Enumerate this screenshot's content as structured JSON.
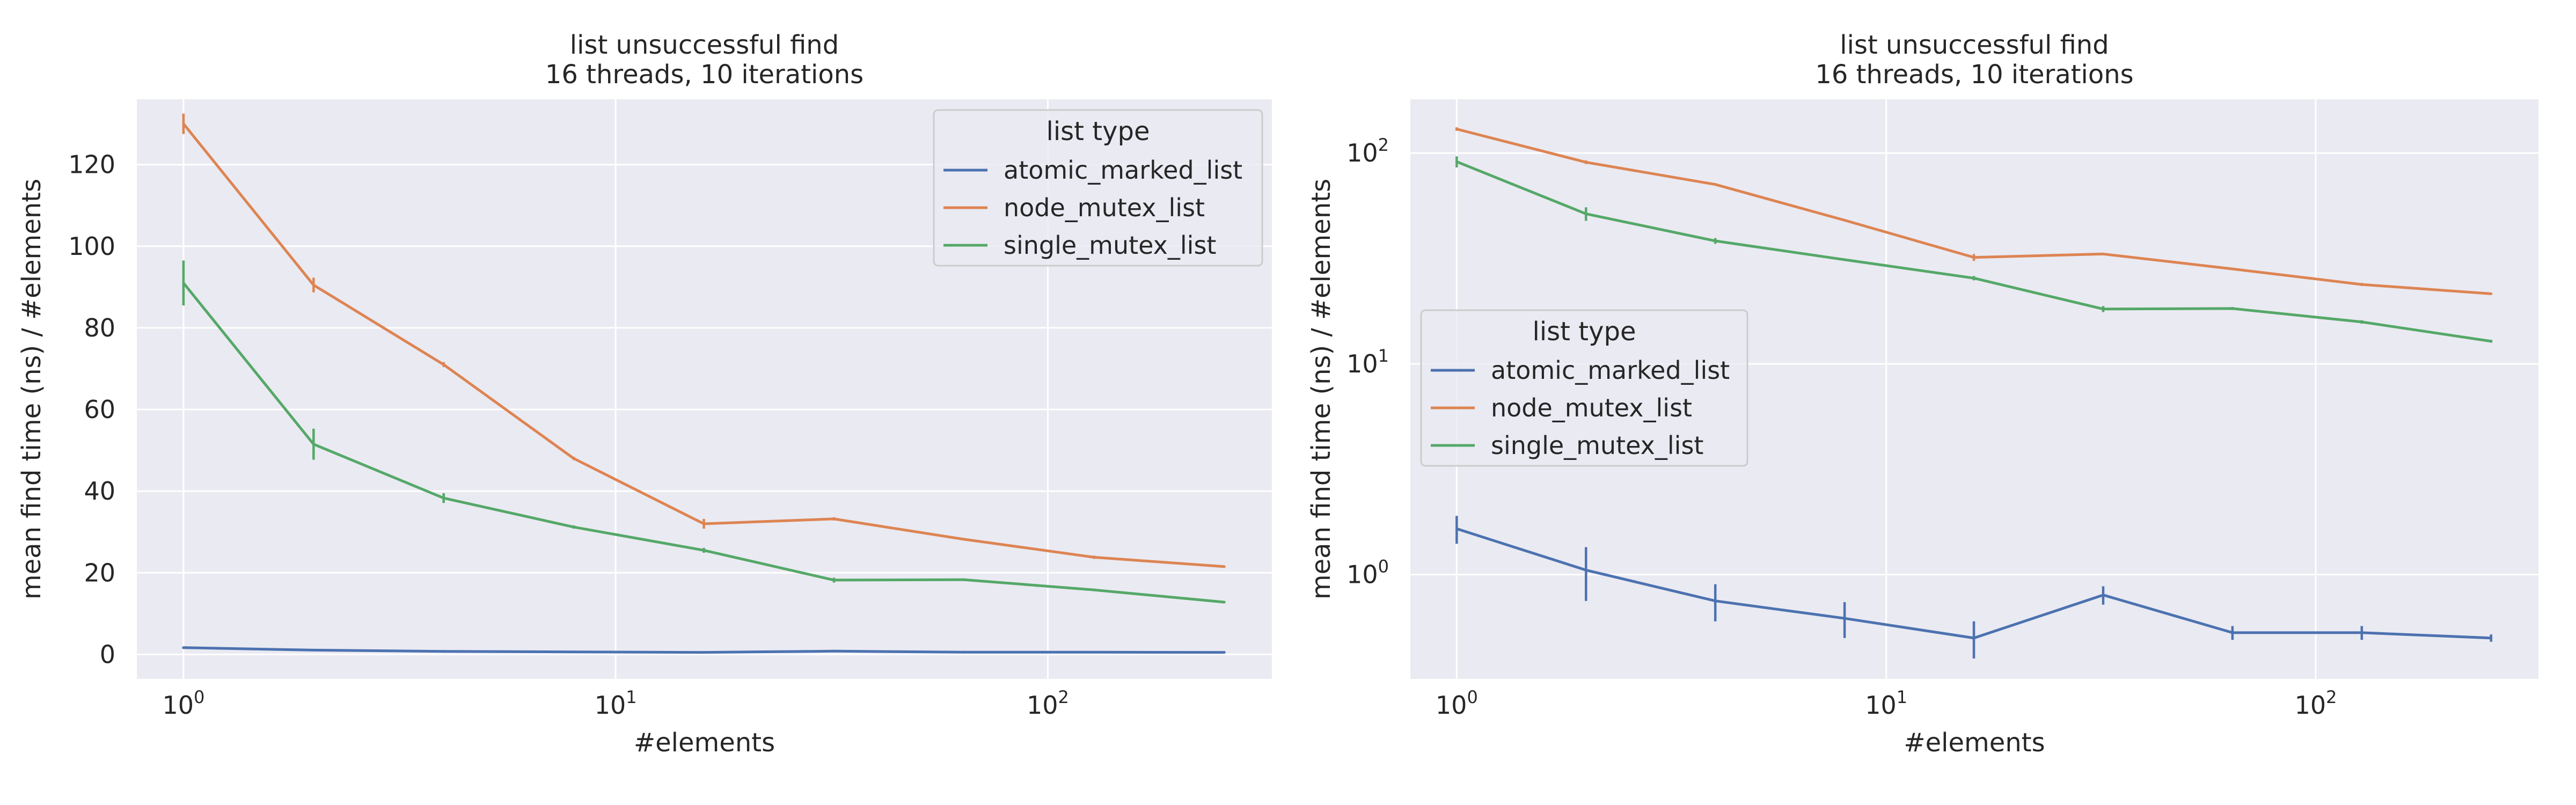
{
  "chart_data": [
    {
      "type": "line",
      "title": "list unsuccessful find\n16 threads, 10 iterations",
      "xlabel": "#elements",
      "ylabel": "mean find time (ns) / #elements",
      "xscale": "log",
      "yscale": "linear",
      "xlim": [
        0.78,
        330
      ],
      "ylim": [
        -6,
        136
      ],
      "grid": true,
      "legend_title": "list type",
      "legend_placement": "top-right",
      "x_ticks": [
        1,
        10,
        100
      ],
      "x_tick_labels": [
        {
          "base": "10",
          "exp": "0"
        },
        {
          "base": "10",
          "exp": "1"
        },
        {
          "base": "10",
          "exp": "2"
        }
      ],
      "y_ticks": [
        0,
        20,
        40,
        60,
        80,
        100,
        120
      ],
      "y_tick_labels": [
        "0",
        "20",
        "40",
        "60",
        "80",
        "100",
        "120"
      ],
      "x": [
        1,
        2,
        4,
        8,
        16,
        32,
        64,
        128,
        256
      ],
      "series": [
        {
          "name": "atomic_marked_list",
          "color": "#4c72b0",
          "values": [
            1.65,
            1.05,
            0.75,
            0.62,
            0.5,
            0.8,
            0.53,
            0.53,
            0.5
          ],
          "err": [
            0.25,
            0.3,
            0.15,
            0.12,
            0.1,
            0.08,
            0.04,
            0.04,
            0.02
          ]
        },
        {
          "name": "node_mutex_list",
          "color": "#dd8452",
          "values": [
            130,
            90.5,
            71,
            48,
            32,
            33.2,
            28.2,
            23.8,
            21.5
          ],
          "err": [
            2.5,
            1.8,
            0.6,
            0.4,
            1.2,
            0.4,
            0.3,
            0.4,
            0.2
          ]
        },
        {
          "name": "single_mutex_list",
          "color": "#55a868",
          "values": [
            91,
            51.5,
            38.3,
            31.2,
            25.5,
            18.2,
            18.3,
            15.8,
            12.8
          ],
          "err": [
            5.5,
            3.8,
            1.2,
            0.4,
            0.6,
            0.6,
            0.3,
            0.3,
            0.2
          ]
        }
      ]
    },
    {
      "type": "line",
      "title": "list unsuccessful find\n16 threads, 10 iterations",
      "xlabel": "#elements",
      "ylabel": "mean find time (ns) / #elements",
      "xscale": "log",
      "yscale": "log",
      "xlim": [
        0.78,
        330
      ],
      "ylim": [
        0.32,
        180
      ],
      "grid": true,
      "legend_title": "list type",
      "legend_placement": "center-left",
      "x_ticks": [
        1,
        10,
        100
      ],
      "x_tick_labels": [
        {
          "base": "10",
          "exp": "0"
        },
        {
          "base": "10",
          "exp": "1"
        },
        {
          "base": "10",
          "exp": "2"
        }
      ],
      "y_ticks": [
        1,
        10,
        100
      ],
      "y_tick_labels": [
        {
          "base": "10",
          "exp": "0"
        },
        {
          "base": "10",
          "exp": "1"
        },
        {
          "base": "10",
          "exp": "2"
        }
      ],
      "x": [
        1,
        2,
        4,
        8,
        16,
        32,
        64,
        128,
        256
      ],
      "series": [
        {
          "name": "atomic_marked_list",
          "color": "#4c72b0",
          "values": [
            1.65,
            1.05,
            0.75,
            0.62,
            0.5,
            0.8,
            0.53,
            0.53,
            0.5
          ],
          "err": [
            0.25,
            0.3,
            0.15,
            0.12,
            0.1,
            0.08,
            0.04,
            0.04,
            0.02
          ]
        },
        {
          "name": "node_mutex_list",
          "color": "#dd8452",
          "values": [
            130,
            90.5,
            71,
            48,
            32,
            33.2,
            28.2,
            23.8,
            21.5
          ],
          "err": [
            2.5,
            1.8,
            0.6,
            0.4,
            1.2,
            0.4,
            0.3,
            0.4,
            0.2
          ]
        },
        {
          "name": "single_mutex_list",
          "color": "#55a868",
          "values": [
            91,
            51.5,
            38.3,
            31.2,
            25.5,
            18.2,
            18.3,
            15.8,
            12.8
          ],
          "err": [
            5.5,
            3.8,
            1.2,
            0.4,
            0.6,
            0.6,
            0.3,
            0.3,
            0.2
          ]
        }
      ]
    }
  ]
}
